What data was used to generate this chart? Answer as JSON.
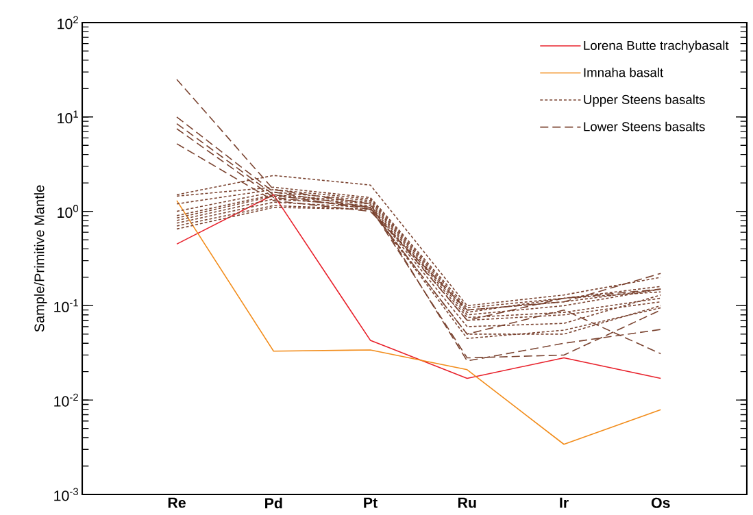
{
  "chart_data": {
    "type": "line",
    "ylabel": "Sample/Primitive Mantle",
    "log": "y",
    "categories": [
      "Re",
      "Pd",
      "Pt",
      "Ru",
      "Ir",
      "Os"
    ],
    "ylim": [
      0.001,
      100
    ],
    "yticks": [
      {
        "value": 0.001,
        "label": "10$^{-3}$"
      },
      {
        "value": 0.01,
        "label": "10$^{-2}$"
      },
      {
        "value": 0.1,
        "label": "10$^{-1}$"
      },
      {
        "value": 1,
        "label": "10$^{0}$"
      },
      {
        "value": 10,
        "label": "10$^{1}$"
      },
      {
        "value": 100,
        "label": "10$^{2}$"
      }
    ],
    "legend": "top right",
    "grid": false,
    "series": [
      {
        "name": "Lorena Butte trachybasalt",
        "color": "#e8202a",
        "line_style": "solid",
        "values": [
          0.45,
          1.5,
          0.043,
          0.017,
          0.028,
          0.017
        ]
      },
      {
        "name": "Imnaha basalt",
        "color": "#f28c1a",
        "line_style": "solid",
        "values": [
          1.3,
          0.033,
          0.034,
          0.021,
          0.0034,
          0.0079
        ]
      },
      {
        "name": "Upper Steens basalts",
        "color": "#7a4330",
        "line_style": "dotted",
        "values": [
          1.5,
          2.4,
          1.9,
          0.1,
          0.13,
          0.2
        ]
      },
      {
        "color": "#7a4330",
        "line_style": "dotted",
        "values": [
          1.45,
          1.8,
          1.4,
          0.095,
          0.12,
          0.16
        ]
      },
      {
        "color": "#7a4330",
        "line_style": "dotted",
        "values": [
          1.2,
          1.7,
          1.35,
          0.09,
          0.11,
          0.15
        ]
      },
      {
        "color": "#7a4330",
        "line_style": "dotted",
        "values": [
          1.0,
          1.6,
          1.3,
          0.085,
          0.12,
          0.14
        ]
      },
      {
        "color": "#7a4330",
        "line_style": "dotted",
        "values": [
          0.9,
          1.5,
          1.25,
          0.08,
          0.1,
          0.15
        ]
      },
      {
        "color": "#7a4330",
        "line_style": "dotted",
        "values": [
          0.85,
          1.45,
          1.2,
          0.075,
          0.085,
          0.12
        ]
      },
      {
        "color": "#7a4330",
        "line_style": "dotted",
        "values": [
          0.8,
          1.35,
          1.15,
          0.07,
          0.08,
          0.11
        ]
      },
      {
        "color": "#7a4330",
        "line_style": "dotted",
        "values": [
          0.75,
          1.25,
          1.1,
          0.06,
          0.065,
          0.13
        ]
      },
      {
        "color": "#7a4330",
        "line_style": "dotted",
        "values": [
          0.7,
          1.15,
          1.05,
          0.05,
          0.05,
          0.1
        ]
      },
      {
        "color": "#7a4330",
        "line_style": "dotted",
        "values": [
          0.65,
          1.1,
          1.05,
          0.045,
          0.055,
          0.095
        ]
      },
      {
        "name": "Lower Steens basalts",
        "color": "#7a4330",
        "line_style": "dashed",
        "values": [
          25,
          1.7,
          1.2,
          0.026,
          0.04,
          0.056
        ]
      },
      {
        "color": "#7a4330",
        "line_style": "dashed",
        "values": [
          10,
          1.6,
          1.1,
          0.028,
          0.03,
          0.09
        ]
      },
      {
        "color": "#7a4330",
        "line_style": "dashed",
        "values": [
          8.5,
          1.5,
          1.05,
          0.05,
          0.09,
          0.031
        ]
      },
      {
        "color": "#7a4330",
        "line_style": "dashed",
        "values": [
          7.5,
          1.4,
          1.1,
          0.07,
          0.12,
          0.15
        ]
      },
      {
        "color": "#7a4330",
        "line_style": "dashed",
        "values": [
          5.2,
          1.3,
          1.0,
          0.09,
          0.11,
          0.22
        ]
      }
    ]
  }
}
